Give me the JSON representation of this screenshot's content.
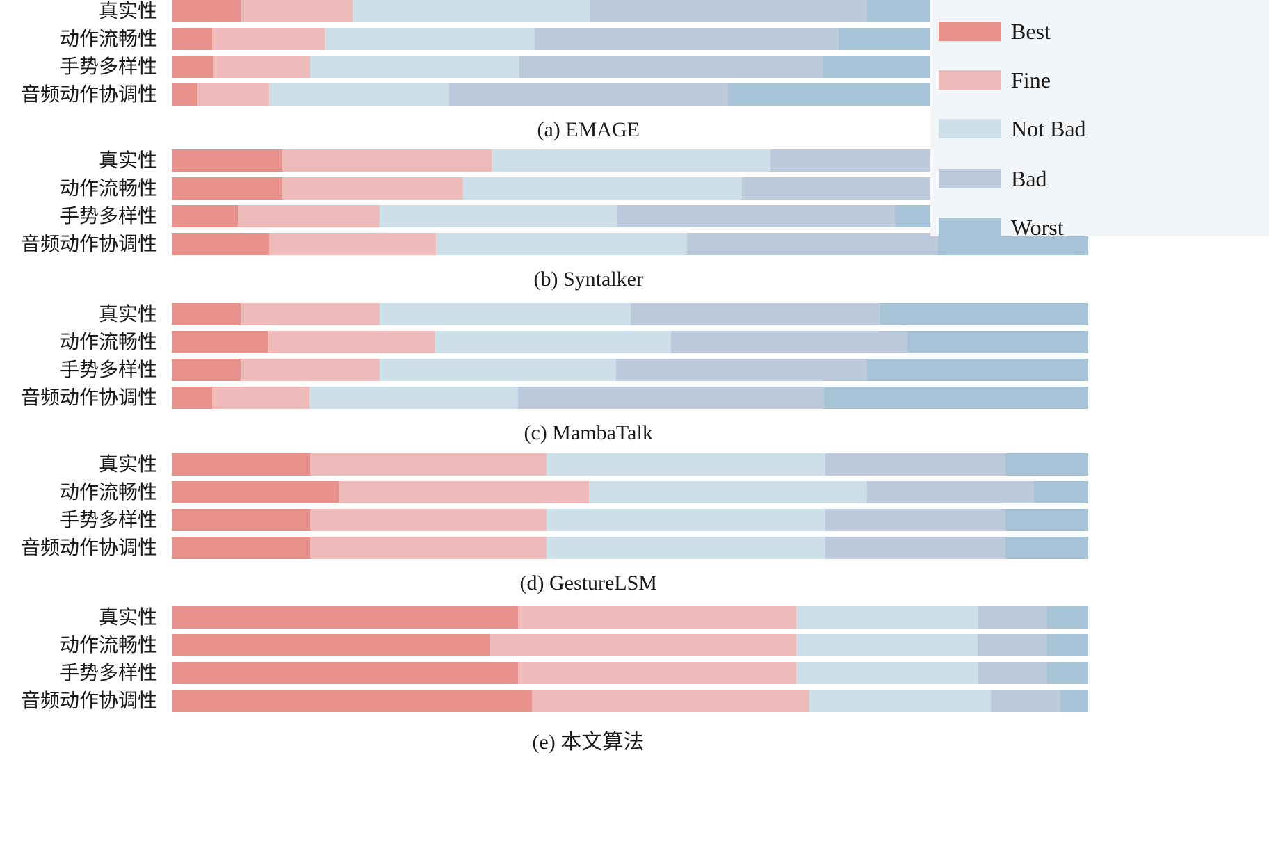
{
  "chart_data": {
    "type": "bar",
    "orientation": "horizontal",
    "stacked": true,
    "normalized": true,
    "units": "percent",
    "categories": [
      "真实性",
      "动作流畅性",
      "手势多样性",
      "音频动作协调性"
    ],
    "legend": {
      "placement": "top-right",
      "entries": [
        {
          "name": "Best",
          "color": "#e8918a"
        },
        {
          "name": "Fine",
          "color": "#efbbba"
        },
        {
          "name": "Not Bad",
          "color": "#cde0e9"
        },
        {
          "name": "Bad",
          "color": "#bccadc"
        },
        {
          "name": "Worst",
          "color": "#a6c3d8"
        }
      ]
    },
    "panels": [
      {
        "title": "(a) EMAGE",
        "series": [
          {
            "name": "Best",
            "values": [
              7.5,
              4.4,
              4.5,
              2.8
            ]
          },
          {
            "name": "Fine",
            "values": [
              12.2,
              12.3,
              10.6,
              7.8
            ]
          },
          {
            "name": "Not Bad",
            "values": [
              25.9,
              22.9,
              22.8,
              19.7
            ]
          },
          {
            "name": "Bad",
            "values": [
              30.3,
              33.2,
              33.2,
              30.4
            ]
          },
          {
            "name": "Worst",
            "values": [
              24.1,
              27.2,
              28.9,
              39.3
            ]
          }
        ]
      },
      {
        "title": "(b) Syntalker",
        "series": [
          {
            "name": "Best",
            "values": [
              12.1,
              12.1,
              7.2,
              10.6
            ]
          },
          {
            "name": "Fine",
            "values": [
              22.8,
              19.7,
              15.5,
              18.2
            ]
          },
          {
            "name": "Not Bad",
            "values": [
              30.4,
              30.4,
              25.9,
              27.4
            ]
          },
          {
            "name": "Bad",
            "values": [
              27.3,
              28.9,
              30.3,
              27.4
            ]
          },
          {
            "name": "Worst",
            "values": [
              7.4,
              8.9,
              21.1,
              16.4
            ]
          }
        ]
      },
      {
        "title": "(c) MambaTalk",
        "series": [
          {
            "name": "Best",
            "values": [
              7.5,
              10.5,
              7.5,
              4.4
            ]
          },
          {
            "name": "Fine",
            "values": [
              15.2,
              18.2,
              15.2,
              10.6
            ]
          },
          {
            "name": "Not Bad",
            "values": [
              27.4,
              25.8,
              25.8,
              22.8
            ]
          },
          {
            "name": "Bad",
            "values": [
              27.2,
              25.8,
              27.4,
              33.4
            ]
          },
          {
            "name": "Worst",
            "values": [
              22.7,
              19.7,
              24.1,
              28.8
            ]
          }
        ]
      },
      {
        "title": "(d) GestureLSM",
        "series": [
          {
            "name": "Best",
            "values": [
              15.1,
              18.2,
              15.1,
              15.1
            ]
          },
          {
            "name": "Fine",
            "values": [
              25.8,
              27.3,
              25.8,
              25.8
            ]
          },
          {
            "name": "Not Bad",
            "values": [
              30.4,
              30.4,
              30.4,
              30.4
            ]
          },
          {
            "name": "Bad",
            "values": [
              19.7,
              18.2,
              19.7,
              19.7
            ]
          },
          {
            "name": "Worst",
            "values": [
              9.0,
              5.9,
              9.0,
              9.0
            ]
          }
        ]
      },
      {
        "title": "(e) 本文算法",
        "series": [
          {
            "name": "Best",
            "values": [
              37.8,
              34.7,
              37.8,
              39.3
            ]
          },
          {
            "name": "Fine",
            "values": [
              30.3,
              33.4,
              30.3,
              30.3
            ]
          },
          {
            "name": "Not Bad",
            "values": [
              19.9,
              19.8,
              19.9,
              19.8
            ]
          },
          {
            "name": "Bad",
            "values": [
              7.5,
              7.6,
              7.5,
              7.6
            ]
          },
          {
            "name": "Worst",
            "values": [
              4.5,
              4.5,
              4.5,
              3.0
            ]
          }
        ]
      }
    ],
    "xlabel": "",
    "ylabel": "",
    "grid": false
  }
}
